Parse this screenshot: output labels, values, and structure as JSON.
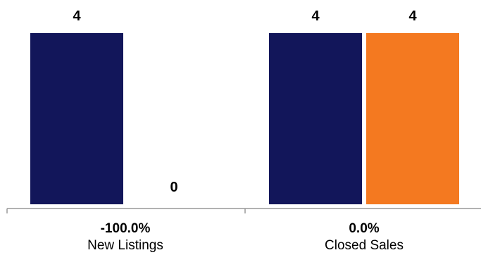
{
  "chart_data": {
    "type": "bar",
    "categories": [
      "New Listings",
      "Closed Sales"
    ],
    "change_labels": [
      "-100.0%",
      "0.0%"
    ],
    "series": [
      {
        "color": "#12165a",
        "values": [
          4,
          4
        ]
      },
      {
        "color": "#f47920",
        "values": [
          0,
          4
        ]
      }
    ],
    "value_labels": [
      [
        "4",
        "0"
      ],
      [
        "4",
        "4"
      ]
    ],
    "ylim": [
      0,
      4
    ]
  }
}
